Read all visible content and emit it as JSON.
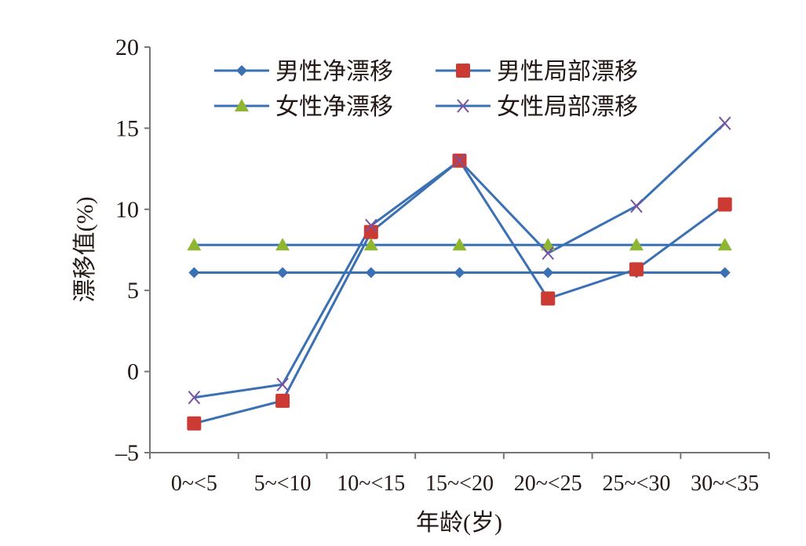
{
  "chart_data": {
    "type": "line",
    "title": "",
    "xlabel": "年龄(岁)",
    "ylabel": "漂移值(%)",
    "ylim": [
      -5,
      20
    ],
    "yticks": [
      "-5",
      "0",
      "5",
      "10",
      "15",
      "20"
    ],
    "categories": [
      "0~<5",
      "5~<10",
      "10~<15",
      "15~<20",
      "20~<25",
      "25~<30",
      "30~<35"
    ],
    "grid": false,
    "legend_position": "top-right",
    "series": [
      {
        "name": "男性净漂移",
        "marker": "diamond",
        "color": "#3a70b4",
        "marker_color": "#3a70b4",
        "values": [
          6.1,
          6.1,
          6.1,
          6.1,
          6.1,
          6.1,
          6.1
        ]
      },
      {
        "name": "男性局部漂移",
        "marker": "square",
        "color": "#3a70b4",
        "marker_color": "#cc3b33",
        "values": [
          -3.2,
          -1.8,
          8.6,
          13.0,
          4.5,
          6.3,
          10.3
        ]
      },
      {
        "name": "女性净漂移",
        "marker": "triangle",
        "color": "#3a70b4",
        "marker_color": "#8fb630",
        "values": [
          7.8,
          7.8,
          7.8,
          7.8,
          7.8,
          7.8,
          7.8
        ]
      },
      {
        "name": "女性局部漂移",
        "marker": "x",
        "color": "#3a70b4",
        "marker_color": "#7a52a0",
        "values": [
          -1.6,
          -0.8,
          9.0,
          13.0,
          7.3,
          10.2,
          15.3
        ]
      }
    ]
  }
}
